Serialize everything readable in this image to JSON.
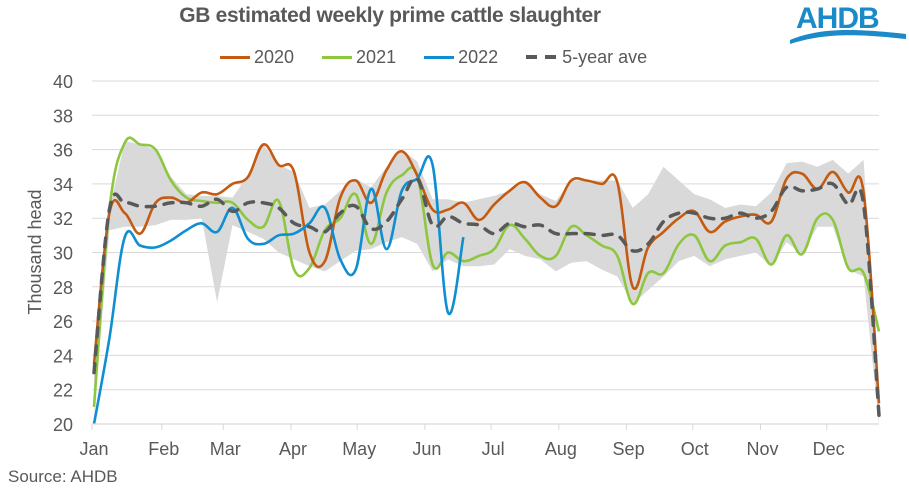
{
  "chart_data": {
    "type": "line",
    "title": "GB estimated weekly prime cattle slaughter",
    "xlabel": "",
    "ylabel": "Thousand head",
    "ylim": [
      20,
      40
    ],
    "yticks": [
      20,
      22,
      24,
      26,
      28,
      30,
      32,
      34,
      36,
      38,
      40
    ],
    "ytick_labels": [
      "20",
      "22",
      "24",
      "26",
      "28",
      "30",
      "32",
      "34",
      "36",
      "38",
      "40"
    ],
    "x_unit": "week of year",
    "xlim": [
      1,
      52
    ],
    "month_ticks": [
      {
        "label": "Jan",
        "week": 1
      },
      {
        "label": "Feb",
        "week": 5.4
      },
      {
        "label": "Mar",
        "week": 9.4
      },
      {
        "label": "Apr",
        "week": 13.8
      },
      {
        "label": "May",
        "week": 18.1
      },
      {
        "label": "Jun",
        "week": 22.5
      },
      {
        "label": "Jul",
        "week": 26.8
      },
      {
        "label": "Aug",
        "week": 31.2
      },
      {
        "label": "Sep",
        "week": 35.6
      },
      {
        "label": "Oct",
        "week": 39.9
      },
      {
        "label": "Nov",
        "week": 44.3
      },
      {
        "label": "Dec",
        "week": 48.6
      }
    ],
    "grid": true,
    "legend_position": "top-center",
    "series": [
      {
        "name": "2020",
        "color": "#c55a11",
        "style": "solid",
        "values": [
          23.5,
          32.3,
          32.3,
          31.1,
          32.9,
          33.2,
          32.9,
          33.5,
          33.4,
          34.0,
          34.4,
          36.3,
          35.1,
          34.7,
          30.0,
          29.5,
          33.2,
          34.2,
          32.9,
          34.8,
          35.9,
          34.5,
          32.5,
          32.5,
          32.9,
          31.9,
          32.8,
          33.6,
          34.1,
          33.2,
          32.7,
          34.2,
          34.2,
          34.0,
          34.1,
          28.0,
          30.3,
          31.2,
          32.0,
          32.4,
          31.2,
          31.8,
          32.1,
          32.2,
          31.8,
          34.3,
          34.6,
          33.7,
          34.7,
          33.5,
          33.5,
          21.2
        ]
      },
      {
        "name": "2021",
        "color": "#8dc63f",
        "style": "solid",
        "values": [
          21.0,
          32.5,
          36.4,
          36.3,
          36.0,
          34.2,
          33.2,
          33.0,
          32.9,
          32.9,
          31.9,
          31.5,
          33.0,
          29.0,
          29.1,
          31.3,
          32.0,
          33.4,
          30.5,
          33.5,
          34.5,
          34.5,
          29.3,
          30.0,
          29.5,
          29.8,
          30.2,
          31.6,
          30.8,
          29.8,
          29.8,
          31.5,
          31.0,
          30.4,
          29.8,
          27.0,
          28.8,
          28.8,
          30.5,
          31.0,
          29.5,
          30.4,
          30.6,
          30.8,
          29.3,
          31.0,
          29.9,
          32.0,
          31.9,
          29.1,
          28.8,
          25.4
        ]
      },
      {
        "name": "2022",
        "color": "#0f8fd2",
        "style": "solid",
        "values": [
          20.0,
          25.0,
          30.9,
          30.4,
          30.3,
          30.7,
          31.3,
          31.7,
          31.2,
          32.6,
          30.8,
          30.5,
          31.0,
          31.1,
          31.7,
          32.6,
          29.6,
          29.0,
          33.7,
          30.2,
          33.6,
          34.3,
          35.1,
          26.5,
          30.9
        ]
      },
      {
        "name": "5-year ave",
        "color": "#595959",
        "style": "dashed",
        "values": [
          23.0,
          32.5,
          32.9,
          32.7,
          32.7,
          32.9,
          32.9,
          32.7,
          33.1,
          32.4,
          32.9,
          32.9,
          32.6,
          31.7,
          31.5,
          31.2,
          32.3,
          32.7,
          31.4,
          31.8,
          33.1,
          34.3,
          31.6,
          32.1,
          31.7,
          31.6,
          31.1,
          31.7,
          31.5,
          31.6,
          31.1,
          31.1,
          31.1,
          31.0,
          31.0,
          30.1,
          30.5,
          31.8,
          32.3,
          32.3,
          32.0,
          32.0,
          32.3,
          32.0,
          32.4,
          33.8,
          33.6,
          33.7,
          34.0,
          32.8,
          32.8,
          20.5
        ]
      }
    ],
    "range_band": {
      "name": "5-year range",
      "color": "#d9d9d9",
      "upper": [
        23.5,
        32.5,
        36.5,
        36.3,
        36.0,
        34.4,
        33.4,
        33.3,
        33.3,
        33.2,
        34.5,
        36.3,
        35.1,
        34.7,
        32.6,
        32.8,
        33.6,
        34.3,
        33.8,
        35.0,
        36.0,
        35.3,
        33.1,
        33.1,
        32.9,
        33.1,
        33.3,
        33.6,
        34.1,
        33.4,
        33.0,
        34.2,
        34.2,
        34.2,
        34.2,
        32.6,
        33.4,
        35.0,
        34.2,
        33.4,
        33.1,
        32.6,
        32.8,
        32.7,
        33.5,
        35.2,
        35.3,
        35.0,
        35.4,
        34.6,
        35.4,
        21.2
      ],
      "lower": [
        20.5,
        31.3,
        31.5,
        31.5,
        31.6,
        31.9,
        31.9,
        32.0,
        27.1,
        31.6,
        31.2,
        30.8,
        30.0,
        29.6,
        29.2,
        28.9,
        29.5,
        30.1,
        30.2,
        30.6,
        30.9,
        30.5,
        28.9,
        29.6,
        29.2,
        29.2,
        29.3,
        30.2,
        29.8,
        29.6,
        28.9,
        29.4,
        29.5,
        29.0,
        28.6,
        27.0,
        27.8,
        28.6,
        29.5,
        29.8,
        29.2,
        29.6,
        29.8,
        30.0,
        29.2,
        30.6,
        29.9,
        31.5,
        31.5,
        29.0,
        28.6,
        20.0
      ]
    }
  },
  "header": {
    "title": "GB estimated weekly prime cattle slaughter",
    "logo_text": "AHDB",
    "logo_color": "#1a8ac8"
  },
  "legend": [
    {
      "label": "2020",
      "color": "#c55a11",
      "style": "solid"
    },
    {
      "label": "2021",
      "color": "#8dc63f",
      "style": "solid"
    },
    {
      "label": "2022",
      "color": "#0f8fd2",
      "style": "solid"
    },
    {
      "label": "5-year ave",
      "color": "#595959",
      "style": "dashed"
    }
  ],
  "footer": {
    "source": "Source: AHDB"
  }
}
